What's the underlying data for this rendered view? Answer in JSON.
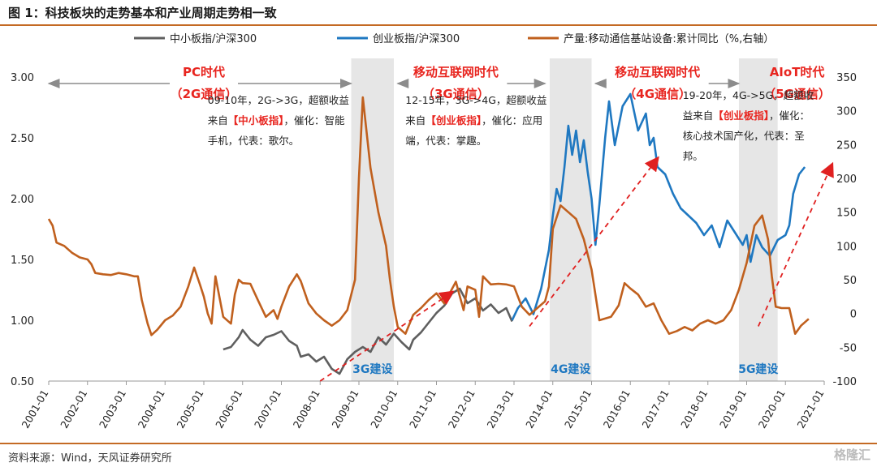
{
  "header": {
    "title": "图 1：科技板块的走势基本和产业周期走势相一致"
  },
  "footer": {
    "source": "资料来源：Wind，天风证券研究所",
    "watermark": "格隆汇"
  },
  "colors": {
    "sme": "#5f5f5f",
    "chinext": "#1f78c1",
    "output": "#c0601e",
    "era": "#e8251f",
    "shade": "#e6e6e6",
    "arrow": "#e02020",
    "build": "#1f78c1"
  },
  "chart_data": {
    "type": "line",
    "title": "",
    "x_ticks": [
      "2001-01",
      "2002-01",
      "2003-01",
      "2004-01",
      "2005-01",
      "2006-01",
      "2007-01",
      "2008-01",
      "2009-01",
      "2010-01",
      "2011-01",
      "2012-01",
      "2013-01",
      "2014-01",
      "2015-01",
      "2016-01",
      "2017-01",
      "2018-01",
      "2019-01",
      "2020-01",
      "2021-01"
    ],
    "y_left": {
      "ticks": [
        "0.50",
        "1.00",
        "1.50",
        "2.00",
        "2.50",
        "3.00"
      ],
      "range": [
        0.5,
        3.0
      ]
    },
    "y_right": {
      "ticks": [
        "-100",
        "-50",
        "0",
        "50",
        "100",
        "150",
        "200",
        "250",
        "300",
        "350"
      ],
      "range": [
        -100,
        350
      ]
    },
    "legend": [
      "中小板指/沪深300",
      "创业板指/沪深300",
      "产量:移动通信基站设备:累计同比（%,右轴）"
    ],
    "legend_placement": "top",
    "series": [
      {
        "name": "中小板指/沪深300",
        "axis": "left",
        "points": [
          [
            2005.5,
            0.76
          ],
          [
            2005.7,
            0.78
          ],
          [
            2005.9,
            0.86
          ],
          [
            2006.0,
            0.92
          ],
          [
            2006.2,
            0.84
          ],
          [
            2006.4,
            0.79
          ],
          [
            2006.6,
            0.86
          ],
          [
            2006.8,
            0.88
          ],
          [
            2007.0,
            0.91
          ],
          [
            2007.2,
            0.83
          ],
          [
            2007.4,
            0.79
          ],
          [
            2007.5,
            0.7
          ],
          [
            2007.7,
            0.72
          ],
          [
            2007.9,
            0.66
          ],
          [
            2008.1,
            0.7
          ],
          [
            2008.3,
            0.6
          ],
          [
            2008.5,
            0.56
          ],
          [
            2008.7,
            0.68
          ],
          [
            2008.9,
            0.74
          ],
          [
            2009.1,
            0.78
          ],
          [
            2009.3,
            0.74
          ],
          [
            2009.5,
            0.86
          ],
          [
            2009.7,
            0.8
          ],
          [
            2009.9,
            0.89
          ],
          [
            2010.1,
            0.82
          ],
          [
            2010.3,
            0.76
          ],
          [
            2010.4,
            0.84
          ],
          [
            2010.6,
            0.9
          ],
          [
            2010.8,
            0.98
          ],
          [
            2011.0,
            1.06
          ],
          [
            2011.2,
            1.12
          ],
          [
            2011.4,
            1.22
          ],
          [
            2011.6,
            1.26
          ],
          [
            2011.8,
            1.14
          ],
          [
            2012.0,
            1.18
          ],
          [
            2012.2,
            1.08
          ],
          [
            2012.4,
            1.13
          ],
          [
            2012.6,
            1.06
          ],
          [
            2012.8,
            1.1
          ],
          [
            2012.95,
            0.99
          ]
        ]
      },
      {
        "name": "创业板指/沪深300",
        "axis": "left",
        "points": [
          [
            2012.95,
            1.0
          ],
          [
            2013.1,
            1.1
          ],
          [
            2013.3,
            1.18
          ],
          [
            2013.5,
            1.05
          ],
          [
            2013.7,
            1.26
          ],
          [
            2013.9,
            1.58
          ],
          [
            2014.0,
            1.86
          ],
          [
            2014.1,
            2.08
          ],
          [
            2014.2,
            1.98
          ],
          [
            2014.3,
            2.26
          ],
          [
            2014.4,
            2.6
          ],
          [
            2014.5,
            2.36
          ],
          [
            2014.6,
            2.56
          ],
          [
            2014.7,
            2.3
          ],
          [
            2014.8,
            2.48
          ],
          [
            2014.9,
            2.22
          ],
          [
            2015.0,
            2.0
          ],
          [
            2015.1,
            1.62
          ],
          [
            2015.2,
            1.95
          ],
          [
            2015.35,
            2.5
          ],
          [
            2015.45,
            2.8
          ],
          [
            2015.6,
            2.44
          ],
          [
            2015.8,
            2.76
          ],
          [
            2016.0,
            2.86
          ],
          [
            2016.2,
            2.56
          ],
          [
            2016.4,
            2.7
          ],
          [
            2016.5,
            2.44
          ],
          [
            2016.6,
            2.5
          ],
          [
            2016.7,
            2.26
          ],
          [
            2016.9,
            2.2
          ],
          [
            2017.1,
            2.04
          ],
          [
            2017.3,
            1.92
          ],
          [
            2017.5,
            1.86
          ],
          [
            2017.7,
            1.8
          ],
          [
            2017.9,
            1.7
          ],
          [
            2018.1,
            1.78
          ],
          [
            2018.3,
            1.6
          ],
          [
            2018.5,
            1.82
          ],
          [
            2018.7,
            1.72
          ],
          [
            2018.9,
            1.62
          ],
          [
            2019.0,
            1.7
          ],
          [
            2019.1,
            1.48
          ],
          [
            2019.25,
            1.7
          ],
          [
            2019.4,
            1.6
          ],
          [
            2019.6,
            1.53
          ],
          [
            2019.8,
            1.66
          ],
          [
            2020.0,
            1.7
          ],
          [
            2020.1,
            1.78
          ],
          [
            2020.2,
            2.04
          ],
          [
            2020.35,
            2.2
          ],
          [
            2020.5,
            2.26
          ]
        ]
      },
      {
        "name": "产量:移动通信基站设备:累计同比（%,右轴）",
        "axis": "right",
        "points": [
          [
            2001.0,
            140
          ],
          [
            2001.1,
            130
          ],
          [
            2001.2,
            105
          ],
          [
            2001.4,
            100
          ],
          [
            2001.6,
            90
          ],
          [
            2001.8,
            83
          ],
          [
            2002.0,
            80
          ],
          [
            2002.1,
            73
          ],
          [
            2002.2,
            60
          ],
          [
            2002.4,
            58
          ],
          [
            2002.6,
            57
          ],
          [
            2002.8,
            60
          ],
          [
            2003.0,
            58
          ],
          [
            2003.2,
            55
          ],
          [
            2003.3,
            55
          ],
          [
            2003.4,
            20
          ],
          [
            2003.55,
            -15
          ],
          [
            2003.65,
            -32
          ],
          [
            2003.8,
            -24
          ],
          [
            2004.0,
            -10
          ],
          [
            2004.2,
            -3
          ],
          [
            2004.4,
            10
          ],
          [
            2004.6,
            40
          ],
          [
            2004.75,
            68
          ],
          [
            2004.9,
            43
          ],
          [
            2005.0,
            25
          ],
          [
            2005.1,
            0
          ],
          [
            2005.2,
            -15
          ],
          [
            2005.3,
            55
          ],
          [
            2005.5,
            -5
          ],
          [
            2005.7,
            -15
          ],
          [
            2005.8,
            28
          ],
          [
            2005.9,
            50
          ],
          [
            2006.0,
            45
          ],
          [
            2006.2,
            44
          ],
          [
            2006.4,
            19
          ],
          [
            2006.6,
            -5
          ],
          [
            2006.8,
            5
          ],
          [
            2006.9,
            -8
          ],
          [
            2007.0,
            10
          ],
          [
            2007.2,
            40
          ],
          [
            2007.4,
            58
          ],
          [
            2007.5,
            48
          ],
          [
            2007.7,
            15
          ],
          [
            2007.9,
            0
          ],
          [
            2008.1,
            -10
          ],
          [
            2008.3,
            -18
          ],
          [
            2008.5,
            -10
          ],
          [
            2008.7,
            5
          ],
          [
            2008.9,
            50
          ],
          [
            2009.0,
            200
          ],
          [
            2009.1,
            320
          ],
          [
            2009.3,
            215
          ],
          [
            2009.5,
            150
          ],
          [
            2009.7,
            100
          ],
          [
            2009.8,
            50
          ],
          [
            2009.9,
            10
          ],
          [
            2010.0,
            -20
          ],
          [
            2010.2,
            -30
          ],
          [
            2010.4,
            -2
          ],
          [
            2010.6,
            8
          ],
          [
            2010.8,
            20
          ],
          [
            2011.0,
            30
          ],
          [
            2011.2,
            15
          ],
          [
            2011.5,
            47
          ],
          [
            2011.7,
            5
          ],
          [
            2011.8,
            40
          ],
          [
            2012.0,
            35
          ],
          [
            2012.1,
            -5
          ],
          [
            2012.2,
            55
          ],
          [
            2012.4,
            43
          ],
          [
            2012.6,
            44
          ],
          [
            2012.8,
            43
          ],
          [
            2013.0,
            40
          ],
          [
            2013.2,
            10
          ],
          [
            2013.4,
            -2
          ],
          [
            2013.6,
            8
          ],
          [
            2013.8,
            18
          ],
          [
            2013.9,
            40
          ],
          [
            2014.0,
            125
          ],
          [
            2014.2,
            160
          ],
          [
            2014.4,
            150
          ],
          [
            2014.6,
            140
          ],
          [
            2014.8,
            110
          ],
          [
            2015.0,
            65
          ],
          [
            2015.2,
            -10
          ],
          [
            2015.5,
            -5
          ],
          [
            2015.7,
            12
          ],
          [
            2015.85,
            45
          ],
          [
            2016.0,
            37
          ],
          [
            2016.2,
            28
          ],
          [
            2016.4,
            10
          ],
          [
            2016.6,
            15
          ],
          [
            2016.8,
            -10
          ],
          [
            2017.0,
            -30
          ],
          [
            2017.2,
            -26
          ],
          [
            2017.4,
            -20
          ],
          [
            2017.6,
            -25
          ],
          [
            2017.8,
            -15
          ],
          [
            2018.0,
            -10
          ],
          [
            2018.2,
            -15
          ],
          [
            2018.4,
            -10
          ],
          [
            2018.6,
            5
          ],
          [
            2018.8,
            35
          ],
          [
            2019.0,
            75
          ],
          [
            2019.2,
            130
          ],
          [
            2019.4,
            145
          ],
          [
            2019.55,
            110
          ],
          [
            2019.65,
            55
          ],
          [
            2019.75,
            10
          ],
          [
            2019.9,
            8
          ],
          [
            2020.1,
            8
          ],
          [
            2020.25,
            -30
          ],
          [
            2020.4,
            -18
          ],
          [
            2020.6,
            -8
          ]
        ]
      }
    ],
    "shaded": [
      {
        "from": 2008.8,
        "to": 2009.9,
        "label": "3G建设"
      },
      {
        "from": 2013.92,
        "to": 2015.0,
        "label": "4G建设"
      },
      {
        "from": 2018.8,
        "to": 2019.8,
        "label": "5G建设"
      }
    ],
    "eras": [
      {
        "line1": "PC时代",
        "line2": "（2G通信）",
        "cx": 2005.0,
        "from": 2001.0,
        "to": 2008.8
      },
      {
        "line1": "移动互联网时代",
        "line2": "（3G通信）",
        "cx": 2011.5,
        "from": 2010.0,
        "to": 2013.8
      },
      {
        "line1": "移动互联网时代",
        "line2": "（4G通信）",
        "cx": 2016.7,
        "from": 2015.1,
        "to": 2018.8
      },
      {
        "line1": "AIoT时代",
        "line2": "（5G通信）",
        "cx": 2020.3,
        "from": null,
        "to": null
      }
    ],
    "trend_arrows": [
      {
        "from": [
          2008.0,
          0.5
        ],
        "to": [
          2011.4,
          1.23
        ]
      },
      {
        "from": [
          2013.4,
          0.95
        ],
        "to": [
          2016.7,
          2.33
        ]
      },
      {
        "from": [
          2019.3,
          0.95
        ],
        "to": [
          2021.2,
          2.28
        ]
      }
    ],
    "annotations": [
      {
        "x": 2005.1,
        "y": 2.58,
        "lines": [
          "09-10年，2G->3G，超额收益",
          "来自",
          "【中小板指】",
          "，催化：智能",
          "手机，代表：歌尔。"
        ]
      },
      {
        "x": 2010.2,
        "y": 2.58,
        "lines": [
          "12-15年，3G->4G，超额收益",
          "来自",
          "【创业板指】",
          "，催化：应用",
          "端，代表：掌趣。"
        ]
      },
      {
        "x": 2017.35,
        "y": 2.62,
        "lines": [
          "19-20年，4G->5G，超额收",
          "益来自",
          "【创业板指】",
          "，催化：",
          "核心技术国产化，代表：圣",
          "邦。"
        ]
      }
    ]
  }
}
